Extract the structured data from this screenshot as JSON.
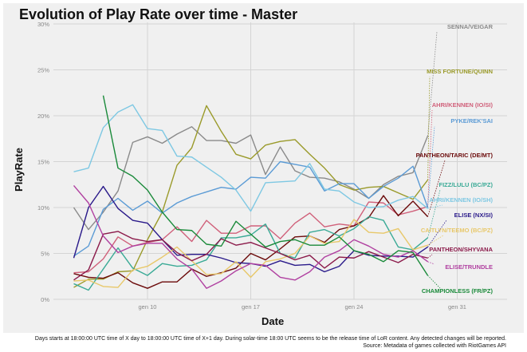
{
  "chart_data": {
    "type": "line",
    "title": "Evolution of Play Rate over time - Master",
    "xlabel": "Date",
    "ylabel": "PlayRate",
    "x_ticks": [
      "gen 10",
      "gen 17",
      "gen 24",
      "gen 31"
    ],
    "y_ticks": [
      "0%",
      "5%",
      "10%",
      "15%",
      "20%",
      "25%",
      "30%"
    ],
    "ylim": [
      0,
      30
    ],
    "grid": true,
    "legend": "direct labels at right",
    "x": [
      "gen 5",
      "gen 6",
      "gen 7",
      "gen 8",
      "gen 9",
      "gen 10",
      "gen 11",
      "gen 12",
      "gen 13",
      "gen 14",
      "gen 15",
      "gen 16",
      "gen 17",
      "gen 18",
      "gen 19",
      "gen 20",
      "gen 21",
      "gen 22",
      "gen 23",
      "gen 24",
      "gen 25",
      "gen 26",
      "gen 27",
      "gen 28",
      "gen 29"
    ],
    "series": [
      {
        "name": "SENNA/VEIGAR",
        "color": "#8a8a8a",
        "values": [
          10,
          7.6,
          9.5,
          11.8,
          17.1,
          17.7,
          17,
          18,
          18.8,
          17.3,
          17.3,
          17,
          17.9,
          13.6,
          16.6,
          14,
          13.3,
          13.2,
          12.8,
          12,
          11,
          12.5,
          13.4,
          13.8,
          17.8
        ]
      },
      {
        "name": "MISS FORTUNE/QUINN",
        "color": "#9a9a2a",
        "values": [
          1.3,
          2.2,
          2.2,
          3,
          3.1,
          6.5,
          9.5,
          14.6,
          16.5,
          21.1,
          18.3,
          15.8,
          15.3,
          16.8,
          17.2,
          17.4,
          15.8,
          14.3,
          12.5,
          11.9,
          12.2,
          12.3,
          11.6,
          10.9,
          13
        ]
      },
      {
        "name": "AHRI/KENNEN (IO/SI)",
        "color": "#d0607a",
        "values": [
          2.9,
          3,
          4.4,
          6.8,
          5.8,
          6.2,
          6.5,
          7.9,
          6.3,
          8.6,
          7.2,
          7.2,
          8,
          8,
          6.6,
          8.3,
          9.4,
          7.9,
          8.2,
          8,
          10.6,
          10.5,
          9.2,
          9.6,
          10.1
        ]
      },
      {
        "name": "PYKE/REK'SAI",
        "color": "#5b9bd5",
        "values": [
          4.7,
          5.8,
          9.8,
          11,
          9.7,
          10.7,
          9.4,
          10.5,
          11.2,
          11.7,
          12.2,
          12,
          13.3,
          13.2,
          15,
          14.7,
          14.4,
          11.8,
          12.6,
          12.6,
          11,
          12.3,
          13.2,
          14.5,
          10
        ]
      },
      {
        "name": "PANTHEON/TARIC (DE/MT)",
        "color": "#6b0a0a",
        "values": [
          2.8,
          2.4,
          2.3,
          2.9,
          1.8,
          1.2,
          1.9,
          1.9,
          3.3,
          2.5,
          2.9,
          3.4,
          5,
          4.3,
          5.5,
          6.8,
          6.9,
          6.2,
          7.6,
          8,
          8.9,
          11.3,
          9.1,
          10.7,
          9
        ]
      },
      {
        "name": "FIZZ/LULU (BC/PZ)",
        "color": "#3aaa96",
        "values": [
          1.7,
          1,
          3.3,
          5.6,
          3.4,
          2.6,
          3.9,
          3.6,
          3.7,
          4.3,
          6.7,
          6.7,
          7,
          8.2,
          5,
          4.5,
          7.3,
          7.6,
          6.9,
          7.7,
          9,
          8.6,
          5.7,
          5.4,
          6.7
        ]
      },
      {
        "name": "AHRI/KENNEN (IO/SH)",
        "color": "#7ec8e3",
        "values": [
          13.9,
          14.3,
          18.7,
          20.4,
          21.2,
          18.6,
          18.4,
          15.6,
          15.5,
          14.4,
          13.3,
          11.9,
          9.6,
          12.7,
          12.8,
          12.9,
          14.8,
          12,
          11.8,
          10.6,
          10,
          10.1,
          10.8,
          11.2,
          9.9
        ]
      },
      {
        "name": "ELISE (NX/SI)",
        "color": "#2a1a8a",
        "values": [
          4.5,
          10,
          12.3,
          9.9,
          8.6,
          8.3,
          6.5,
          4.8,
          4.9,
          4.9,
          4.5,
          4,
          3.9,
          3.6,
          4.2,
          3.7,
          3.8,
          3,
          3.6,
          5.3,
          4.8,
          4.7,
          4.7,
          4.6,
          5.7
        ]
      },
      {
        "name": "CAITLYN/TEEMO (BC/PZ)",
        "color": "#e8c86a",
        "values": [
          2,
          2.1,
          1.4,
          1.3,
          3.2,
          3.6,
          4.6,
          5.7,
          4.2,
          2.7,
          2.8,
          4.1,
          2.4,
          4.1,
          4.4,
          5,
          6.9,
          6.1,
          6.3,
          8.7,
          7.3,
          7.2,
          7.7,
          5.4,
          5.9
        ]
      },
      {
        "name": "PANTHEON/SHYVANA",
        "color": "#8b1a4a",
        "values": [
          2.1,
          3.2,
          7.1,
          7.4,
          6.6,
          6.3,
          6.5,
          5.1,
          4.2,
          4.9,
          6.6,
          5.9,
          6.2,
          5.6,
          5,
          4.3,
          4.8,
          3.4,
          4.6,
          4.5,
          5.2,
          4.6,
          4,
          4.9,
          4.5
        ]
      },
      {
        "name": "ELISE/TRUNDLE",
        "color": "#b040a0",
        "values": [
          12.4,
          10.5,
          6.9,
          5.1,
          5.8,
          6.1,
          6.1,
          4.4,
          3.3,
          1.2,
          2,
          3.1,
          3.9,
          3.7,
          2.4,
          2.1,
          3,
          4.6,
          5.3,
          6.5,
          5.8,
          4.9,
          4.6,
          5.3,
          4.1
        ]
      },
      {
        "name": "CHAMPIONLESS (FR/PZ)",
        "color": "#1a8a3a",
        "values": [
          null,
          null,
          22.2,
          14.3,
          13.4,
          11.9,
          9.5,
          7.6,
          7.5,
          6,
          5.8,
          8.5,
          7.1,
          5.7,
          6.3,
          6.5,
          5.9,
          5.9,
          6.8,
          5.3,
          4.9,
          4.1,
          5.3,
          5.1,
          2.6
        ]
      }
    ]
  },
  "footnote": {
    "line1": "Days starts at 18:00:00 UTC time of X day to 18:00:00 UTC time of X+1 day. During solar-time 18:00 UTC seems to be the release time of LoR content. Any detected changes will be reported.",
    "line2": "Source: Metadata of games collected with RiotGames API"
  }
}
